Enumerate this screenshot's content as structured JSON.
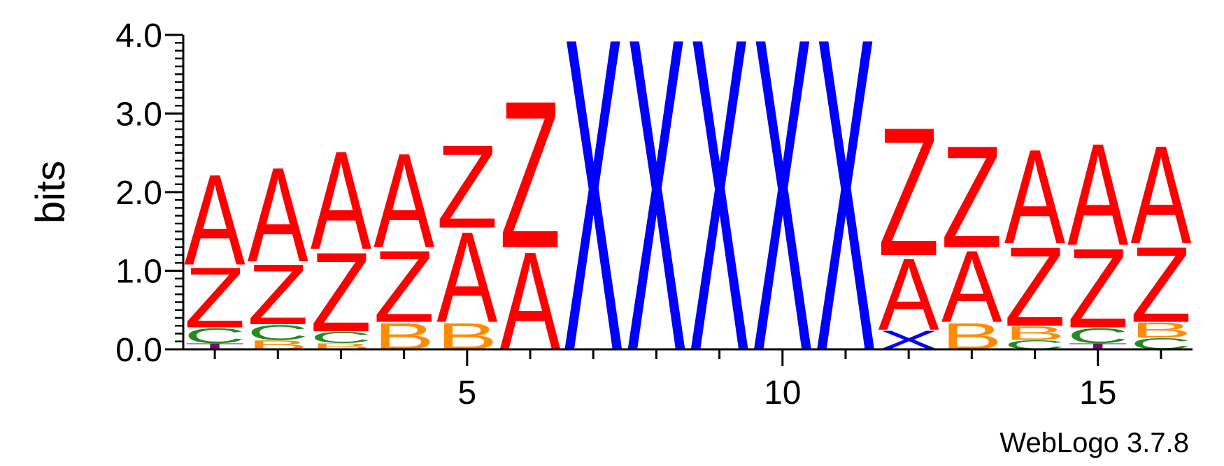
{
  "chart_data": {
    "type": "sequence-logo",
    "title": "",
    "ylabel": "bits",
    "ylim": [
      0,
      4.0
    ],
    "yticks": [
      "0.0",
      "1.0",
      "2.0",
      "3.0",
      "4.0"
    ],
    "xlim": [
      0.5,
      16.5
    ],
    "xtick_labels": [
      {
        "pos": 5,
        "label": "5"
      },
      {
        "pos": 10,
        "label": "10"
      },
      {
        "pos": 15,
        "label": "15"
      }
    ],
    "credit": "WebLogo 3.7.8",
    "colors": {
      "A": "#ff0000",
      "Z": "#ff0000",
      "X": "#0000ff",
      "B": "#ff8c00",
      "C": "#228b22",
      "T": "#800080"
    },
    "positions": [
      {
        "pos": 1,
        "stack": [
          {
            "letter": "T",
            "bits": 0.08
          },
          {
            "letter": "C",
            "bits": 0.2
          },
          {
            "letter": "Z",
            "bits": 0.8
          },
          {
            "letter": "A",
            "bits": 1.2
          }
        ]
      },
      {
        "pos": 2,
        "stack": [
          {
            "letter": "B",
            "bits": 0.12
          },
          {
            "letter": "C",
            "bits": 0.2
          },
          {
            "letter": "Z",
            "bits": 0.8
          },
          {
            "letter": "A",
            "bits": 1.25
          }
        ]
      },
      {
        "pos": 3,
        "stack": [
          {
            "letter": "B",
            "bits": 0.08
          },
          {
            "letter": "C",
            "bits": 0.15
          },
          {
            "letter": "Z",
            "bits": 1.05
          },
          {
            "letter": "A",
            "bits": 1.3
          }
        ]
      },
      {
        "pos": 4,
        "stack": [
          {
            "letter": "B",
            "bits": 0.35
          },
          {
            "letter": "Z",
            "bits": 0.95
          },
          {
            "letter": "A",
            "bits": 1.25
          }
        ]
      },
      {
        "pos": 5,
        "stack": [
          {
            "letter": "B",
            "bits": 0.35
          },
          {
            "letter": "A",
            "bits": 1.2
          },
          {
            "letter": "Z",
            "bits": 1.1
          }
        ]
      },
      {
        "pos": 6,
        "stack": [
          {
            "letter": "A",
            "bits": 1.3
          },
          {
            "letter": "Z",
            "bits": 1.95
          }
        ]
      },
      {
        "pos": 7,
        "stack": [
          {
            "letter": "X",
            "bits": 4.15
          }
        ]
      },
      {
        "pos": 8,
        "stack": [
          {
            "letter": "X",
            "bits": 4.15
          }
        ]
      },
      {
        "pos": 9,
        "stack": [
          {
            "letter": "X",
            "bits": 4.15
          }
        ]
      },
      {
        "pos": 10,
        "stack": [
          {
            "letter": "X",
            "bits": 4.15
          }
        ]
      },
      {
        "pos": 11,
        "stack": [
          {
            "letter": "X",
            "bits": 4.15
          }
        ]
      },
      {
        "pos": 12,
        "stack": [
          {
            "letter": "X",
            "bits": 0.25
          },
          {
            "letter": "A",
            "bits": 0.95
          },
          {
            "letter": "Z",
            "bits": 1.7
          }
        ]
      },
      {
        "pos": 13,
        "stack": [
          {
            "letter": "B",
            "bits": 0.35
          },
          {
            "letter": "A",
            "bits": 0.95
          },
          {
            "letter": "Z",
            "bits": 1.35
          }
        ]
      },
      {
        "pos": 14,
        "stack": [
          {
            "letter": "C",
            "bits": 0.12
          },
          {
            "letter": "B",
            "bits": 0.18
          },
          {
            "letter": "Z",
            "bits": 1.05
          },
          {
            "letter": "A",
            "bits": 1.25
          }
        ]
      },
      {
        "pos": 15,
        "stack": [
          {
            "letter": "T",
            "bits": 0.08
          },
          {
            "letter": "C",
            "bits": 0.2
          },
          {
            "letter": "Z",
            "bits": 1.05
          },
          {
            "letter": "A",
            "bits": 1.35
          }
        ]
      },
      {
        "pos": 16,
        "stack": [
          {
            "letter": "C",
            "bits": 0.15
          },
          {
            "letter": "B",
            "bits": 0.2
          },
          {
            "letter": "Z",
            "bits": 1.0
          },
          {
            "letter": "A",
            "bits": 1.3
          }
        ]
      }
    ]
  }
}
